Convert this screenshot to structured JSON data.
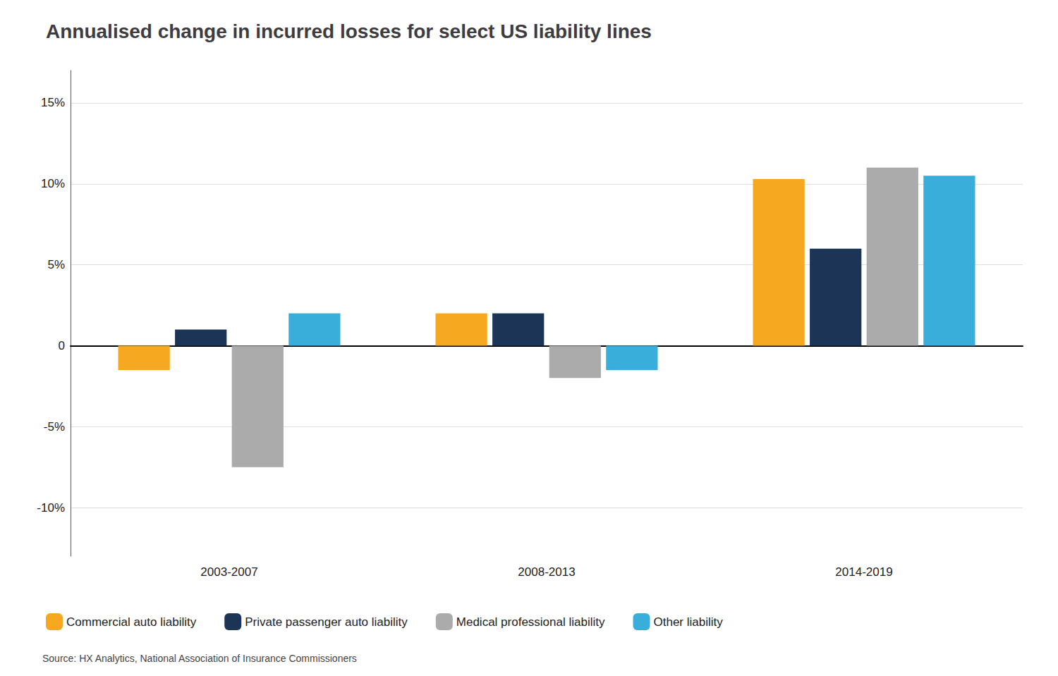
{
  "chart_data": {
    "type": "bar",
    "title": "Annualised change in incurred losses for select US liability lines",
    "categories": [
      "2003-2007",
      "2008-2013",
      "2014-2019"
    ],
    "series": [
      {
        "name": "Commercial auto liability",
        "color": "#F5A820",
        "values": [
          -1.5,
          2.0,
          10.3
        ]
      },
      {
        "name": "Private passenger auto liability",
        "color": "#1C3557",
        "values": [
          1.0,
          2.0,
          6.0
        ]
      },
      {
        "name": "Medical professional liability",
        "color": "#ABABAB",
        "values": [
          -7.5,
          -2.0,
          11.0
        ]
      },
      {
        "name": "Other liability",
        "color": "#3AAEDB",
        "values": [
          2.0,
          -1.5,
          10.5
        ]
      }
    ],
    "ylim": [
      -13,
      17
    ],
    "yticks": [
      {
        "value": -10,
        "label": "-10%"
      },
      {
        "value": -5,
        "label": "-5%"
      },
      0,
      {
        "value": 5,
        "label": "5%"
      },
      {
        "value": 10,
        "label": "10%"
      },
      {
        "value": 15,
        "label": "15%"
      }
    ],
    "grid": true,
    "legend": "bottom",
    "annotations": [
      "Source: HX Analytics, National Association of Insurance Commissioners"
    ]
  }
}
